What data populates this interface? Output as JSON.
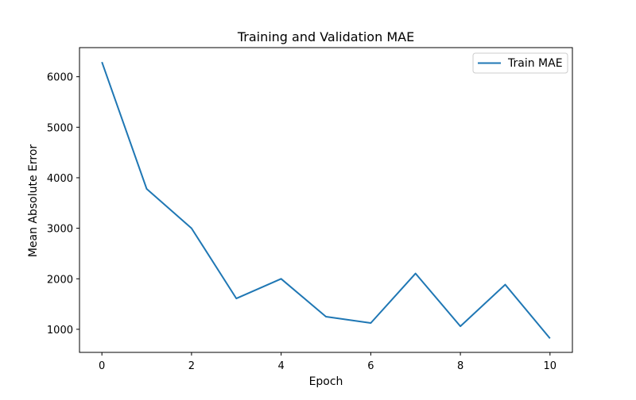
{
  "chart_data": {
    "type": "line",
    "title": "Training and Validation MAE",
    "xlabel": "Epoch",
    "ylabel": "Mean Absolute Error",
    "xlim": [
      -0.5,
      10.5
    ],
    "ylim": [
      543,
      6576
    ],
    "x_ticks": [
      0,
      2,
      4,
      6,
      8,
      10
    ],
    "y_ticks": [
      1000,
      2000,
      3000,
      4000,
      5000,
      6000
    ],
    "grid": false,
    "legend_position": "top-right",
    "series": [
      {
        "name": "Train MAE",
        "color": "#1f77b4",
        "x": [
          0,
          1,
          2,
          3,
          4,
          5,
          6,
          7,
          8,
          9,
          10
        ],
        "values": [
          6290,
          3780,
          3000,
          1610,
          2000,
          1250,
          1125,
          2105,
          1060,
          1885,
          820
        ]
      }
    ]
  }
}
